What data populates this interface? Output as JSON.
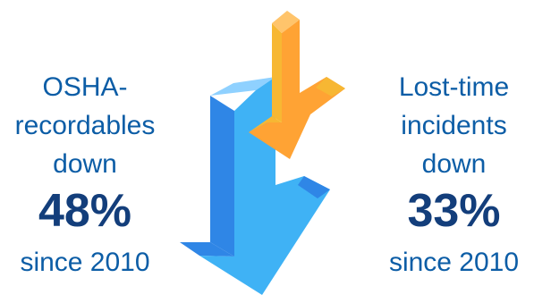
{
  "left_stat": {
    "line1": "OSHA-",
    "line2": "recordables",
    "line3": "down",
    "percent": "48%",
    "since": "since 2010"
  },
  "right_stat": {
    "line1": "Lost-time",
    "line2": "incidents",
    "line3": "down",
    "percent": "33%",
    "since": "since 2010"
  },
  "graphic": {
    "icons": [
      "blue-down-arrow-icon",
      "orange-down-arrow-icon"
    ],
    "colors": {
      "blue_front": "#3fb2f5",
      "blue_side": "#2f86e6",
      "blue_top": "#8fd1ff",
      "orange_front": "#ffa334",
      "orange_side": "#f7b733",
      "orange_top": "#ffc46b",
      "text_primary": "#0c5da6",
      "text_emphasis": "#133e7b"
    }
  }
}
